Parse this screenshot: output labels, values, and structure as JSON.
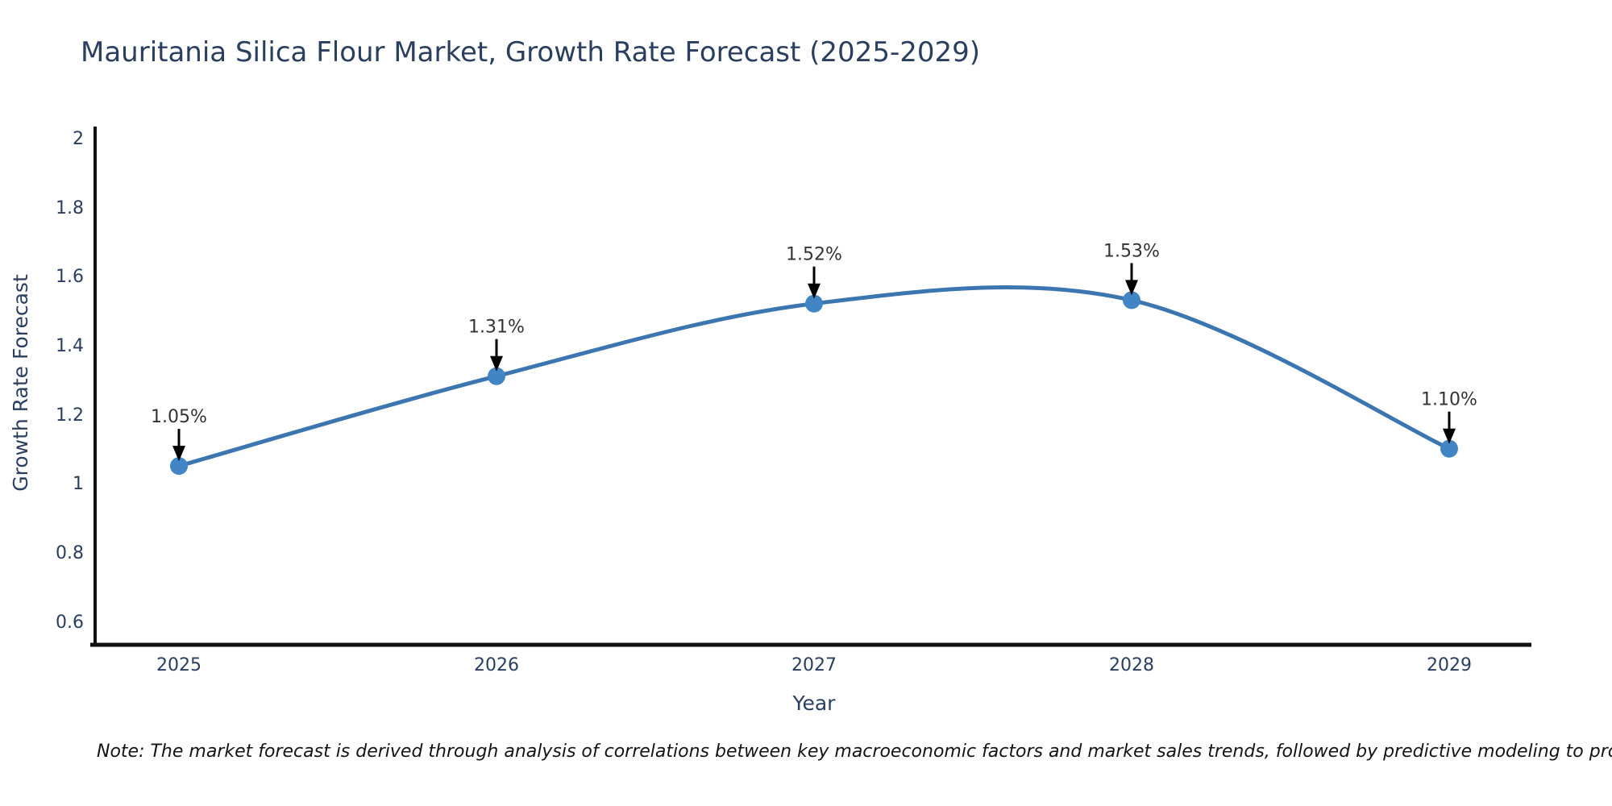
{
  "title": "Mauritania Silica Flour Market, Growth Rate Forecast (2025-2029)",
  "note": "Note: The market forecast is derived through analysis of correlations between key macroeconomic factors and market sales trends, followed by predictive modeling to project future sales",
  "chart_data": {
    "type": "line",
    "line_shape": "spline",
    "title": "Mauritania Silica Flour Market, Growth Rate Forecast (2025-2029)",
    "xlabel": "Year",
    "ylabel": "Growth Rate Forecast",
    "categories": [
      "2025",
      "2026",
      "2027",
      "2028",
      "2029"
    ],
    "values": [
      1.05,
      1.31,
      1.52,
      1.53,
      1.1
    ],
    "labels": [
      "1.05%",
      "1.31%",
      "1.52%",
      "1.53%",
      "1.10%"
    ],
    "ytick_labels": [
      "2",
      "1.8",
      "1.6",
      "1.4",
      "1.2",
      "1",
      "0.8",
      "0.6"
    ],
    "ylim": [
      0.6,
      2
    ],
    "grid": false,
    "legend": "none",
    "line_color": "#3c76b0",
    "marker_color": "#4285c4",
    "annotation_arrow_color": "#000000",
    "axis_color": "#111111",
    "text_color": "#2a3f5f",
    "annotation_text_color": "#333333"
  }
}
